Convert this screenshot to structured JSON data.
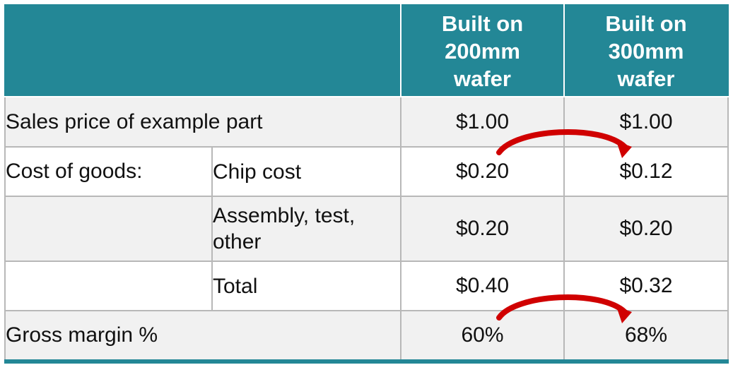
{
  "table": {
    "header": {
      "col3": "Built on\n200mm\nwafer",
      "col4": "Built on\n300mm\nwafer"
    },
    "rows": [
      {
        "label": "Sales price of example part",
        "sublabel": "",
        "v200": "$1.00",
        "v300": "$1.00"
      },
      {
        "label": "Cost of goods:",
        "sublabel": "Chip cost",
        "v200": "$0.20",
        "v300": "$0.12"
      },
      {
        "label": "",
        "sublabel": "Assembly, test, other",
        "v200": "$0.20",
        "v300": "$0.20"
      },
      {
        "label": "",
        "sublabel": "Total",
        "v200": "$0.40",
        "v300": "$0.32"
      },
      {
        "label": "Gross margin %",
        "sublabel": "",
        "v200": "60%",
        "v300": "68%"
      }
    ]
  },
  "colors": {
    "header_bg": "#238796",
    "header_text": "#ffffff",
    "row_shade": "#f1f1f1",
    "grid": "#b8b8b8",
    "arrow": "#d00000"
  },
  "icons": [
    "curved-arrow-icon",
    "curved-arrow-icon"
  ]
}
